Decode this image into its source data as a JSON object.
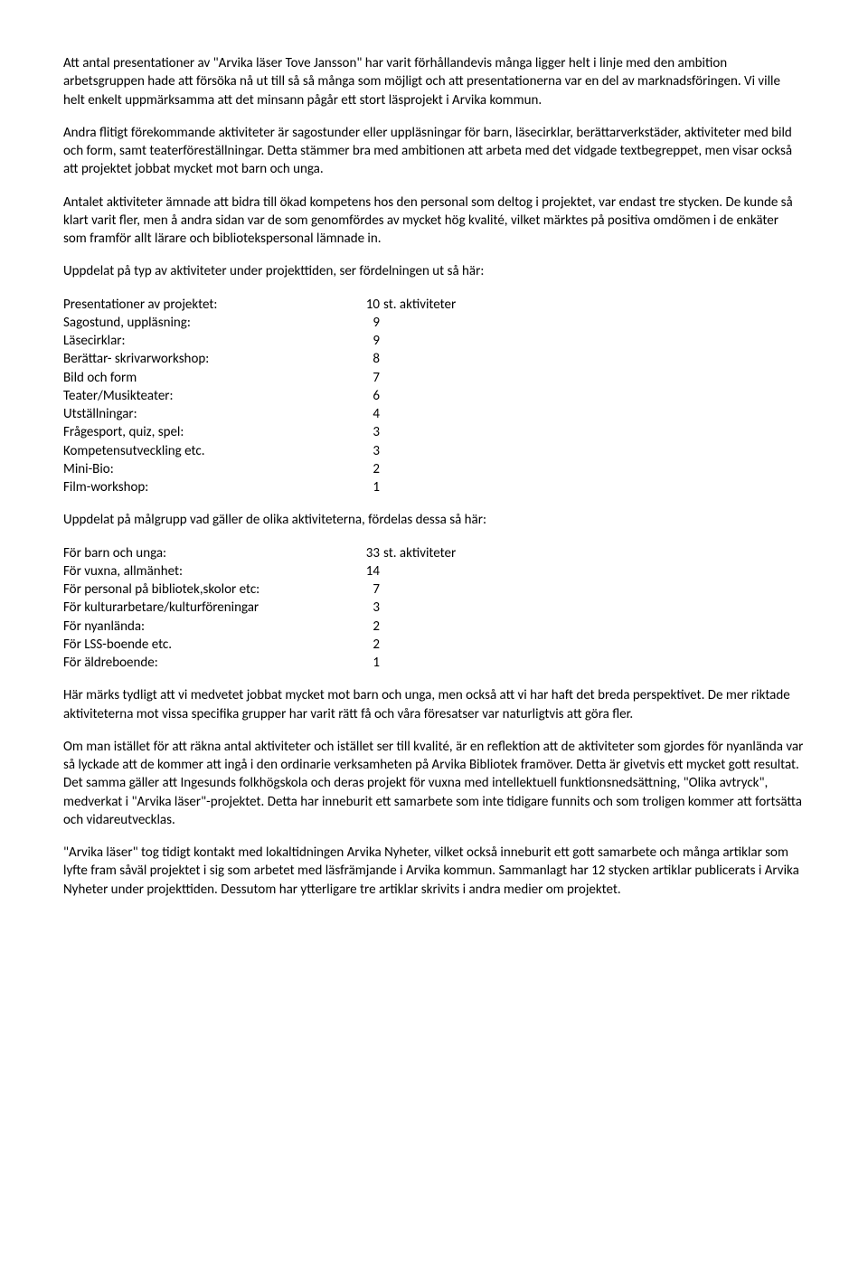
{
  "paragraphs": {
    "p1": "Att antal presentationer av \"Arvika läser Tove Jansson\" har varit förhållandevis många ligger helt i linje med den ambition arbetsgruppen hade att försöka nå ut till så så många som möjligt och att presentationerna var en del av marknadsföringen. Vi ville helt enkelt uppmärksamma att det minsann pågår ett stort läsprojekt i Arvika kommun.",
    "p2": "Andra flitigt förekommande aktiviteter är sagostunder eller uppläsningar för barn, läsecirklar, berättarverkstäder, aktiviteter med bild och form, samt teaterföreställningar. Detta stämmer bra med ambitionen att arbeta med det vidgade textbegreppet, men visar också att projektet jobbat mycket mot barn och unga.",
    "p3": "Antalet aktiviteter ämnade att bidra till ökad kompetens hos den personal som deltog i projektet, var endast tre stycken. De kunde så klart varit fler, men å andra sidan var de som genomfördes av mycket hög kvalité, vilket märktes på positiva omdömen i de enkäter som framför allt lärare och bibliotekspersonal lämnade in.",
    "p4": "Uppdelat på typ av aktiviteter under projekttiden, ser fördelningen ut så här:",
    "p5": "Uppdelat på målgrupp vad gäller de olika aktiviteterna, fördelas dessa så här:",
    "p6": "Här märks tydligt att vi medvetet jobbat mycket mot barn och unga, men också att vi har haft det breda perspektivet. De mer riktade aktiviteterna mot vissa specifika grupper har varit rätt få och våra föresatser var naturligtvis att göra fler.",
    "p7": "Om man istället för att räkna antal aktiviteter och istället ser till kvalité, är en reflektion att de aktiviteter som gjordes för nyanlända var så lyckade att de kommer att ingå i den ordinarie verksamheten på Arvika Bibliotek framöver. Detta är givetvis ett mycket gott resultat. Det samma gäller att Ingesunds folkhögskola och deras projekt för vuxna med intellektuell funktionsnedsättning, \"Olika avtryck\", medverkat i \"Arvika läser\"-projektet. Detta har inneburit ett samarbete som inte tidigare funnits och som troligen kommer att fortsätta och vidareutvecklas.",
    "p8": "\"Arvika läser\" tog tidigt kontakt med lokaltidningen Arvika Nyheter, vilket också inneburit ett gott samarbete och många artiklar som lyfte fram såväl projektet i sig som arbetet med läsfrämjande i Arvika kommun. Sammanlagt har 12 stycken artiklar publicerats i Arvika Nyheter under projekttiden. Dessutom har ytterligare tre artiklar skrivits i andra medier om projektet."
  },
  "table1": {
    "suffix": "st. aktiviteter",
    "rows": [
      {
        "label": "Presentationer av projektet:",
        "value": "10"
      },
      {
        "label": "Sagostund, uppläsning:",
        "value": "9"
      },
      {
        "label": "Läsecirklar:",
        "value": "9"
      },
      {
        "label": "Berättar- skrivarworkshop:",
        "value": "8"
      },
      {
        "label": "Bild och form",
        "value": "7"
      },
      {
        "label": "Teater/Musikteater:",
        "value": "6"
      },
      {
        "label": "Utställningar:",
        "value": "4"
      },
      {
        "label": "Frågesport, quiz, spel:",
        "value": "3"
      },
      {
        "label": "Kompetensutveckling etc.",
        "value": "3"
      },
      {
        "label": "Mini-Bio:",
        "value": "2"
      },
      {
        "label": "Film-workshop:",
        "value": "1"
      }
    ]
  },
  "table2": {
    "suffix": "st. aktiviteter",
    "rows": [
      {
        "label": "För barn och unga:",
        "value": "33"
      },
      {
        "label": "För vuxna, allmänhet:",
        "value": "14"
      },
      {
        "label": "För personal på bibliotek,skolor etc:",
        "value": "7"
      },
      {
        "label": "För kulturarbetare/kulturföreningar",
        "value": "3"
      },
      {
        "label": "För nyanlända:",
        "value": "2"
      },
      {
        "label": "För LSS-boende etc.",
        "value": "2"
      },
      {
        "label": "För äldreboende:",
        "value": "1"
      }
    ]
  }
}
